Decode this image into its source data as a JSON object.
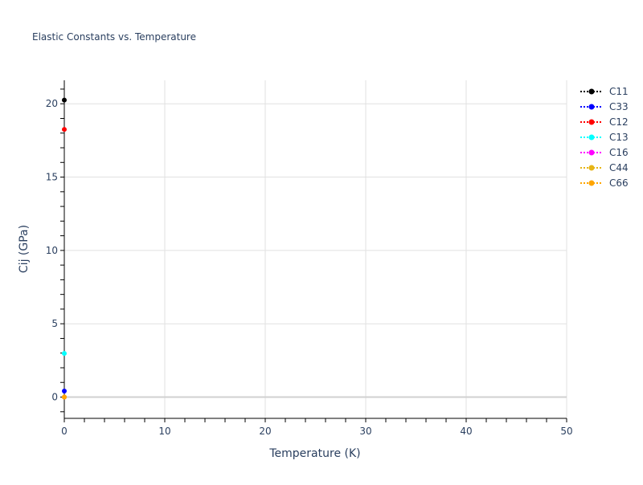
{
  "chart_data": {
    "type": "scatter",
    "title": "Elastic Constants vs. Temperature",
    "xlabel": "Temperature (K)",
    "ylabel": "Cij (GPa)",
    "xlim": [
      0,
      50
    ],
    "ylim": [
      -1.45,
      21.6
    ],
    "xticks": [
      0,
      10,
      20,
      30,
      40,
      50
    ],
    "yticks": [
      0,
      5,
      10,
      15,
      20
    ],
    "grid": true,
    "legend_position": "top-right",
    "series": [
      {
        "name": "C11",
        "color": "#000000",
        "x": [
          0
        ],
        "y": [
          20.25
        ]
      },
      {
        "name": "C33",
        "color": "#0000ff",
        "x": [
          0
        ],
        "y": [
          0.41
        ]
      },
      {
        "name": "C12",
        "color": "#ff0000",
        "x": [
          0
        ],
        "y": [
          18.25
        ]
      },
      {
        "name": "C13",
        "color": "#00ffff",
        "x": [
          0
        ],
        "y": [
          2.98
        ]
      },
      {
        "name": "C16",
        "color": "#ff00ff",
        "x": [
          0
        ],
        "y": [
          0
        ]
      },
      {
        "name": "C44",
        "color": "#e6b517",
        "x": [
          0
        ],
        "y": [
          0
        ]
      },
      {
        "name": "C66",
        "color": "#ffa500",
        "x": [
          0
        ],
        "y": [
          0
        ]
      }
    ]
  }
}
